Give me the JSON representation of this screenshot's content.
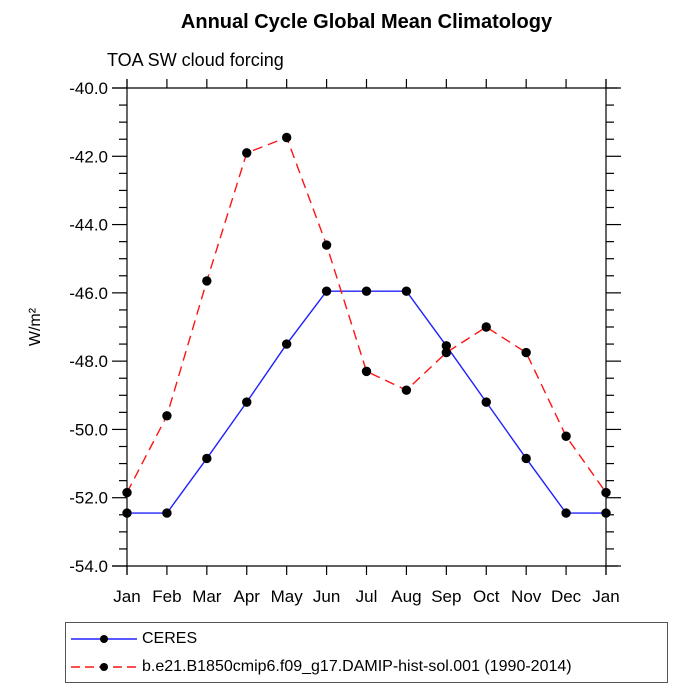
{
  "page_background": "#ffffff",
  "chart_data": {
    "type": "line",
    "title": "Annual Cycle Global Mean Climatology",
    "subtitle": "TOA SW cloud forcing",
    "xlabel": "",
    "ylabel": "W/m²",
    "categories": [
      "Jan",
      "Feb",
      "Mar",
      "Apr",
      "May",
      "Jun",
      "Jul",
      "Aug",
      "Sep",
      "Oct",
      "Nov",
      "Dec",
      "Jan"
    ],
    "ylim": [
      -54.0,
      -40.0
    ],
    "ytick_major_step": 2.0,
    "ytick_minor_step": 0.5,
    "ytick_labels": [
      "-40.0",
      "-42.0",
      "-44.0",
      "-46.0",
      "-48.0",
      "-50.0",
      "-52.0",
      "-54.0"
    ],
    "grid": false,
    "legend_position": "bottom-left-box",
    "axis_color": "#000000",
    "marker_color": "#000000",
    "series": [
      {
        "name": "CERES",
        "color": "#2020ff",
        "line_style": "solid",
        "marker": "filled-circle",
        "values": [
          -52.45,
          -52.45,
          -50.85,
          -49.2,
          -47.5,
          -45.95,
          -45.95,
          -45.95,
          -47.55,
          -49.2,
          -50.85,
          -52.45,
          -52.45
        ]
      },
      {
        "name": "b.e21.B1850cmip6.f09_g17.DAMIP-hist-sol.001 (1990-2014)",
        "color": "#ff1414",
        "line_style": "dashed",
        "marker": "filled-circle",
        "values": [
          -51.85,
          -49.6,
          -45.65,
          -41.9,
          -41.45,
          -44.6,
          -48.3,
          -48.85,
          -47.75,
          -47.0,
          -47.75,
          -50.2,
          -51.85
        ]
      }
    ]
  }
}
